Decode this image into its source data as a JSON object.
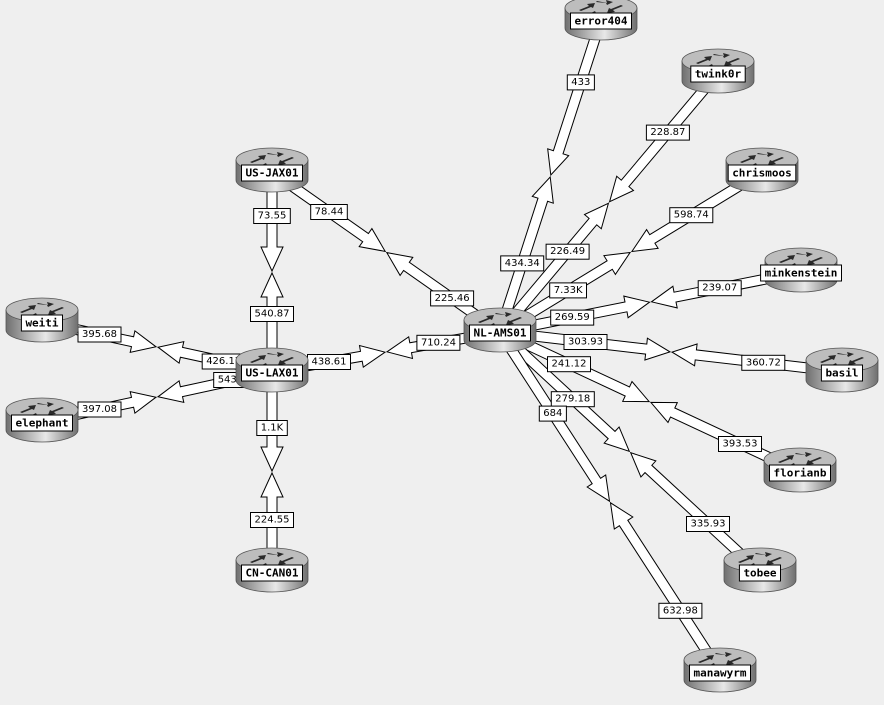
{
  "colors": {
    "background": "#efefef",
    "arrow_fill": "#ffffff",
    "arrow_stroke": "#000000",
    "router_dark": "#6f6f6f",
    "router_light": "#e8e8e8"
  },
  "nodes": [
    {
      "id": "error404",
      "label": "error404",
      "icon": "router-icon"
    },
    {
      "id": "twink0r",
      "label": "twink0r",
      "icon": "router-icon"
    },
    {
      "id": "chrismoos",
      "label": "chrismoos",
      "icon": "router-icon"
    },
    {
      "id": "minkenstein",
      "label": "minkenstein",
      "icon": "router-icon"
    },
    {
      "id": "basil",
      "label": "basil",
      "icon": "router-icon"
    },
    {
      "id": "florianb",
      "label": "florianb",
      "icon": "router-icon"
    },
    {
      "id": "tobee",
      "label": "tobee",
      "icon": "router-icon"
    },
    {
      "id": "manawyrm",
      "label": "manawyrm",
      "icon": "router-icon"
    },
    {
      "id": "nl-ams01",
      "label": "NL-AMS01",
      "icon": "router-icon"
    },
    {
      "id": "us-jax01",
      "label": "US-JAX01",
      "icon": "router-icon"
    },
    {
      "id": "us-lax01",
      "label": "US-LAX01",
      "icon": "router-icon"
    },
    {
      "id": "cn-can01",
      "label": "CN-CAN01",
      "icon": "router-icon"
    },
    {
      "id": "weiti",
      "label": "weiti",
      "icon": "router-icon"
    },
    {
      "id": "elephant",
      "label": "elephant",
      "icon": "router-icon"
    }
  ],
  "links": [
    {
      "a": "nl-ams01",
      "b": "error404",
      "a_to_b": "434.34",
      "b_to_a": "433"
    },
    {
      "a": "nl-ams01",
      "b": "twink0r",
      "a_to_b": "226.49",
      "b_to_a": "228.87"
    },
    {
      "a": "nl-ams01",
      "b": "chrismoos",
      "a_to_b": "7.33K",
      "b_to_a": "598.74"
    },
    {
      "a": "nl-ams01",
      "b": "minkenstein",
      "a_to_b": "269.59",
      "b_to_a": "239.07"
    },
    {
      "a": "nl-ams01",
      "b": "basil",
      "a_to_b": "303.93",
      "b_to_a": "360.72"
    },
    {
      "a": "nl-ams01",
      "b": "florianb",
      "a_to_b": "241.12",
      "b_to_a": "393.53"
    },
    {
      "a": "nl-ams01",
      "b": "tobee",
      "a_to_b": "279.18",
      "b_to_a": "335.93"
    },
    {
      "a": "nl-ams01",
      "b": "manawyrm",
      "a_to_b": "684",
      "b_to_a": "632.98"
    },
    {
      "a": "us-jax01",
      "b": "nl-ams01",
      "a_to_b": "78.44",
      "b_to_a": "225.46"
    },
    {
      "a": "us-lax01",
      "b": "nl-ams01",
      "a_to_b": "438.61",
      "b_to_a": "710.24"
    },
    {
      "a": "us-lax01",
      "b": "us-jax01",
      "a_to_b": "540.87",
      "b_to_a": "73.55"
    },
    {
      "a": "us-lax01",
      "b": "cn-can01",
      "a_to_b": "1.1K",
      "b_to_a": "224.55"
    },
    {
      "a": "weiti",
      "b": "us-lax01",
      "a_to_b": "395.68",
      "b_to_a": "426.17"
    },
    {
      "a": "elephant",
      "b": "us-lax01",
      "a_to_b": "397.08",
      "b_to_a": "543.53"
    }
  ]
}
